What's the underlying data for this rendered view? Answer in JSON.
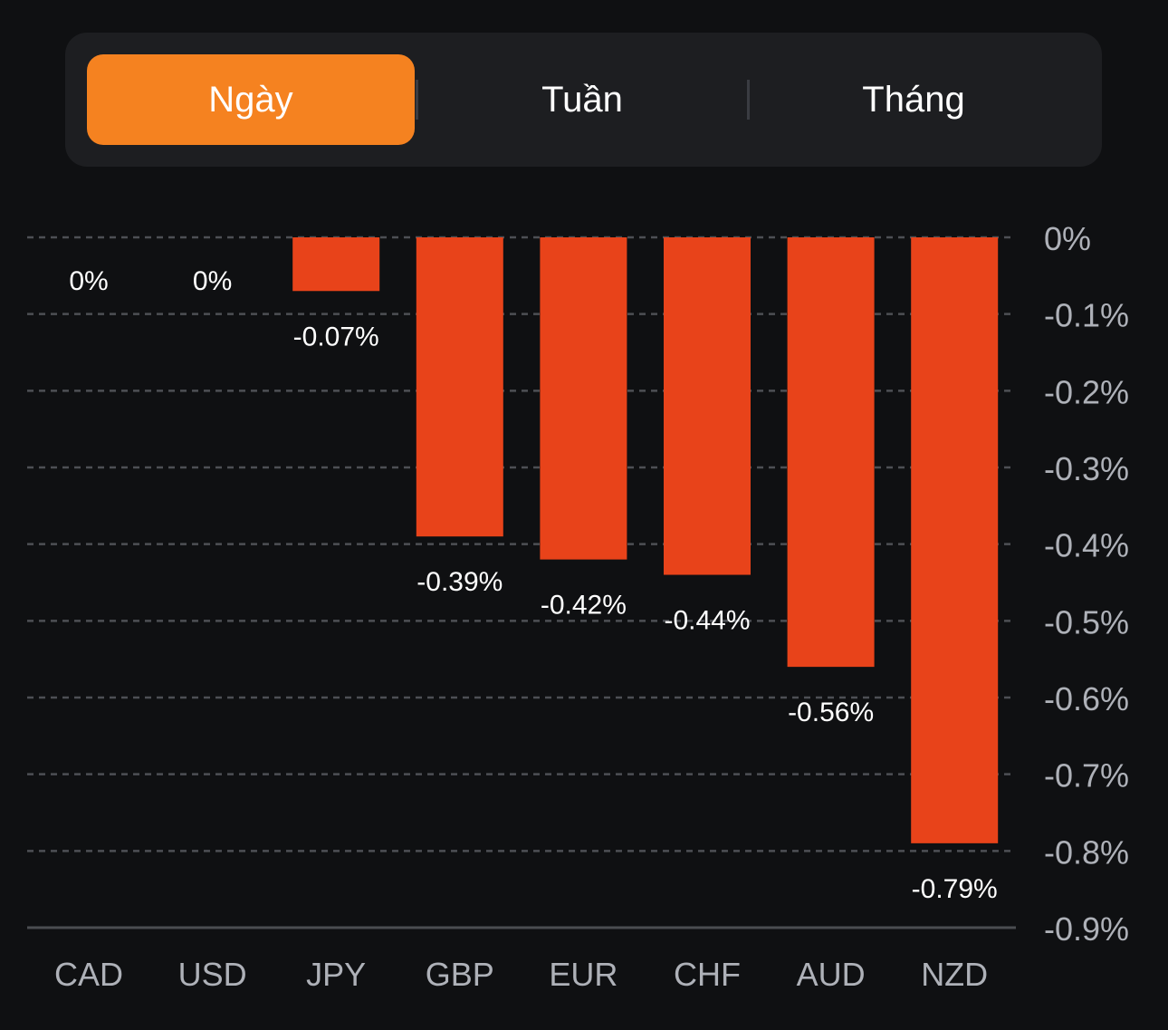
{
  "tabs": {
    "items": [
      {
        "label": "Ngày",
        "active": true
      },
      {
        "label": "Tuần",
        "active": false
      },
      {
        "label": "Tháng",
        "active": false
      }
    ],
    "accent": "#f58220"
  },
  "chart_data": {
    "type": "bar",
    "title": "",
    "xlabel": "",
    "ylabel": "",
    "categories": [
      "CAD",
      "USD",
      "JPY",
      "GBP",
      "EUR",
      "CHF",
      "AUD",
      "NZD"
    ],
    "values": [
      0,
      0,
      -0.07,
      -0.39,
      -0.42,
      -0.44,
      -0.56,
      -0.79
    ],
    "value_labels": [
      "0%",
      "0%",
      "-0.07%",
      "-0.39%",
      "-0.42%",
      "-0.44%",
      "-0.56%",
      "-0.79%"
    ],
    "unit": "%",
    "ylim": [
      -0.9,
      0
    ],
    "yticks": [
      0,
      -0.1,
      -0.2,
      -0.3,
      -0.4,
      -0.5,
      -0.6,
      -0.7,
      -0.8,
      -0.9
    ],
    "ytick_labels": [
      "0%",
      "-0.1%",
      "-0.2%",
      "-0.3%",
      "-0.4%",
      "-0.5%",
      "-0.6%",
      "-0.7%",
      "-0.8%",
      "-0.9%"
    ],
    "y_axis_position": "right",
    "grid": true,
    "bar_color": "#e8431a",
    "legend": "none"
  }
}
